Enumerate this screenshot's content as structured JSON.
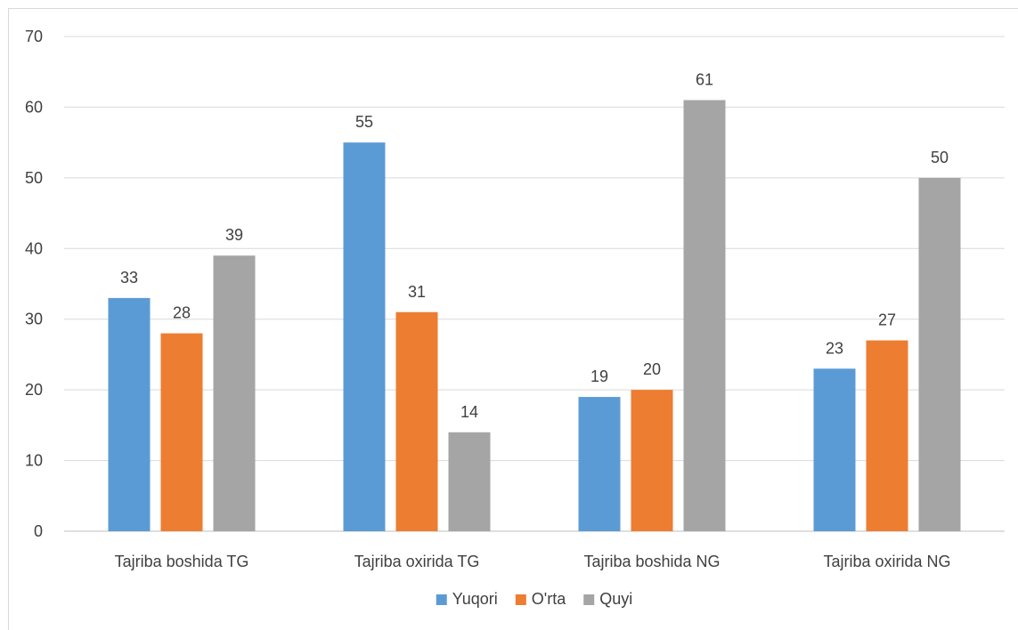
{
  "chart_data": {
    "type": "bar",
    "categories": [
      "Tajriba boshida TG",
      "Tajriba oxirida TG",
      "Tajriba boshida NG",
      "Tajriba oxirida NG"
    ],
    "series": [
      {
        "name": "Yuqori",
        "values": [
          33,
          55,
          19,
          23
        ],
        "color": "#5b9bd5"
      },
      {
        "name": "O'rta",
        "values": [
          28,
          31,
          20,
          27
        ],
        "color": "#ed7d31"
      },
      {
        "name": "Quyi",
        "values": [
          39,
          14,
          61,
          50
        ],
        "color": "#a5a5a5"
      }
    ],
    "ylim": [
      0,
      70
    ],
    "yticks": [
      0,
      10,
      20,
      30,
      40,
      50,
      60,
      70
    ],
    "grid": true,
    "legend": "bottom",
    "title": "",
    "xlabel": "",
    "ylabel": ""
  }
}
